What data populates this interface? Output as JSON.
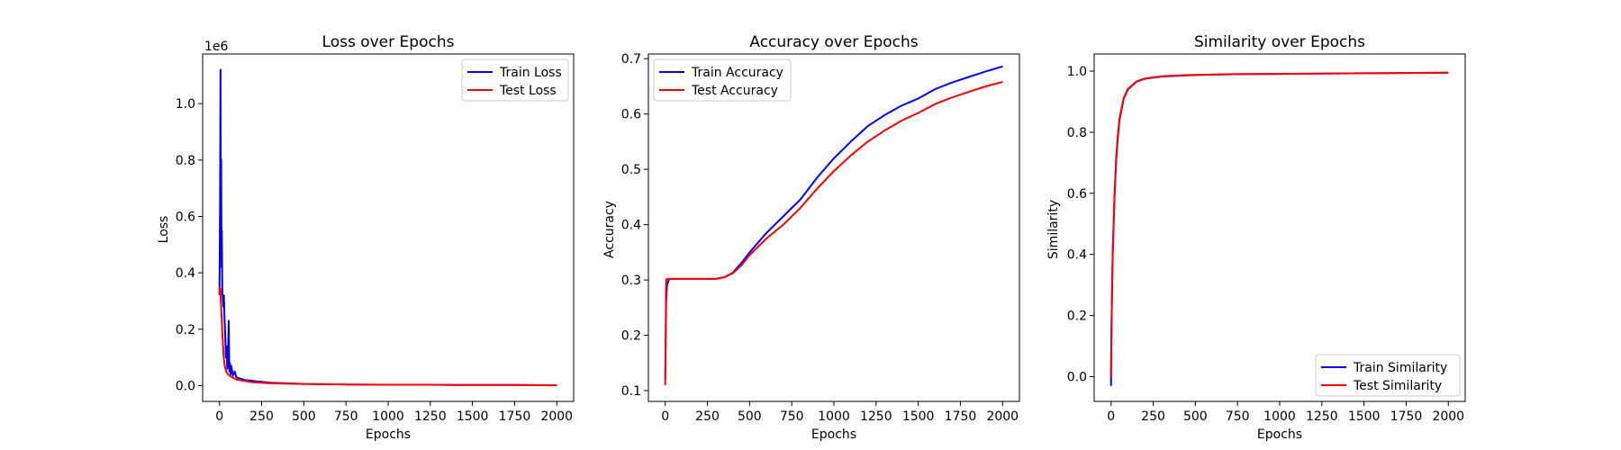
{
  "chart_data": [
    {
      "type": "line",
      "title": "Loss over Epochs",
      "xlabel": "Epochs",
      "ylabel": "Loss",
      "offset_text": "1e6",
      "xlim": [
        -100,
        2100
      ],
      "ylim": [
        -0.056,
        1.176
      ],
      "xticks": [
        0,
        250,
        500,
        750,
        1000,
        1250,
        1500,
        1750,
        2000
      ],
      "xtick_labels": [
        "0",
        "250",
        "500",
        "750",
        "1000",
        "1250",
        "1500",
        "1750",
        "2000"
      ],
      "yticks": [
        0.0,
        0.2,
        0.4,
        0.6,
        0.8,
        1.0
      ],
      "ytick_labels": [
        "0.0",
        "0.2",
        "0.4",
        "0.6",
        "0.8",
        "1.0"
      ],
      "legend_position": "top-right",
      "series": [
        {
          "name": "Train Loss",
          "color": "#0000ff",
          "x": [
            0,
            3,
            6,
            8,
            10,
            12,
            14,
            17,
            20,
            23,
            26,
            30,
            34,
            38,
            42,
            46,
            50,
            55,
            58,
            62,
            66,
            70,
            80,
            90,
            100,
            120,
            150,
            180,
            220,
            260,
            300,
            400,
            500,
            750,
            1000,
            1250,
            1500,
            1750,
            2000
          ],
          "y": [
            0.33,
            0.62,
            1.12,
            0.55,
            0.8,
            0.42,
            0.55,
            0.33,
            0.31,
            0.28,
            0.32,
            0.24,
            0.18,
            0.1,
            0.14,
            0.06,
            0.09,
            0.23,
            0.05,
            0.08,
            0.04,
            0.07,
            0.035,
            0.05,
            0.03,
            0.025,
            0.02,
            0.018,
            0.015,
            0.013,
            0.01,
            0.008,
            0.006,
            0.004,
            0.003,
            0.003,
            0.002,
            0.002,
            0.001
          ]
        },
        {
          "name": "Test Loss",
          "color": "#ff0000",
          "x": [
            0,
            2,
            5,
            8,
            12,
            16,
            20,
            25,
            30,
            35,
            40,
            50,
            60,
            80,
            100,
            150,
            200,
            300,
            400,
            500,
            750,
            1000,
            1250,
            1500,
            1750,
            2000
          ],
          "y": [
            0.32,
            0.35,
            0.34,
            0.3,
            0.25,
            0.2,
            0.15,
            0.1,
            0.075,
            0.06,
            0.05,
            0.04,
            0.035,
            0.028,
            0.022,
            0.016,
            0.012,
            0.008,
            0.007,
            0.006,
            0.004,
            0.003,
            0.003,
            0.002,
            0.002,
            0.001
          ]
        }
      ]
    },
    {
      "type": "line",
      "title": "Accuracy over Epochs",
      "xlabel": "Epochs",
      "ylabel": "Accuracy",
      "xlim": [
        -100,
        2100
      ],
      "ylim": [
        0.0805,
        0.7085
      ],
      "xticks": [
        0,
        250,
        500,
        750,
        1000,
        1250,
        1500,
        1750,
        2000
      ],
      "xtick_labels": [
        "0",
        "250",
        "500",
        "750",
        "1000",
        "1250",
        "1500",
        "1750",
        "2000"
      ],
      "yticks": [
        0.1,
        0.2,
        0.3,
        0.4,
        0.5,
        0.6,
        0.7
      ],
      "ytick_labels": [
        "0.1",
        "0.2",
        "0.3",
        "0.4",
        "0.5",
        "0.6",
        "0.7"
      ],
      "legend_position": "top-left",
      "series": [
        {
          "name": "Train Accuracy",
          "color": "#0000ff",
          "x": [
            0,
            5,
            10,
            20,
            30,
            50,
            100,
            200,
            300,
            350,
            400,
            450,
            500,
            600,
            700,
            800,
            900,
            1000,
            1100,
            1200,
            1300,
            1400,
            1500,
            1600,
            1700,
            1800,
            1900,
            2000
          ],
          "y": [
            0.12,
            0.26,
            0.29,
            0.3,
            0.302,
            0.302,
            0.302,
            0.302,
            0.302,
            0.305,
            0.313,
            0.33,
            0.35,
            0.385,
            0.415,
            0.445,
            0.485,
            0.52,
            0.55,
            0.578,
            0.598,
            0.615,
            0.628,
            0.645,
            0.657,
            0.667,
            0.677,
            0.686
          ]
        },
        {
          "name": "Test Accuracy",
          "color": "#ff0000",
          "x": [
            0,
            5,
            10,
            20,
            30,
            50,
            100,
            200,
            300,
            350,
            400,
            450,
            500,
            600,
            700,
            800,
            900,
            1000,
            1100,
            1200,
            1300,
            1400,
            1500,
            1600,
            1700,
            1800,
            1900,
            2000
          ],
          "y": [
            0.11,
            0.3,
            0.302,
            0.302,
            0.302,
            0.302,
            0.302,
            0.302,
            0.302,
            0.305,
            0.312,
            0.326,
            0.345,
            0.375,
            0.4,
            0.43,
            0.465,
            0.497,
            0.525,
            0.55,
            0.57,
            0.588,
            0.602,
            0.618,
            0.63,
            0.64,
            0.65,
            0.658
          ]
        }
      ]
    },
    {
      "type": "line",
      "title": "Similarity over Epochs",
      "xlabel": "Epochs",
      "ylabel": "Similarity",
      "xlim": [
        -100,
        2100
      ],
      "ylim": [
        -0.081,
        1.056
      ],
      "xticks": [
        0,
        250,
        500,
        750,
        1000,
        1250,
        1500,
        1750,
        2000
      ],
      "xtick_labels": [
        "0",
        "250",
        "500",
        "750",
        "1000",
        "1250",
        "1500",
        "1750",
        "2000"
      ],
      "yticks": [
        0.0,
        0.2,
        0.4,
        0.6,
        0.8,
        1.0
      ],
      "ytick_labels": [
        "0.0",
        "0.2",
        "0.4",
        "0.6",
        "0.8",
        "1.0"
      ],
      "legend_position": "bottom-right",
      "series": [
        {
          "name": "Train Similarity",
          "color": "#0000ff",
          "x": [
            0,
            2,
            5,
            10,
            20,
            30,
            40,
            50,
            75,
            100,
            150,
            200,
            300,
            400,
            500,
            750,
            1000,
            1500,
            2000
          ],
          "y": [
            -0.03,
            0.12,
            0.25,
            0.4,
            0.58,
            0.7,
            0.78,
            0.84,
            0.91,
            0.94,
            0.965,
            0.975,
            0.982,
            0.985,
            0.987,
            0.99,
            0.991,
            0.993,
            0.995
          ]
        },
        {
          "name": "Test Similarity",
          "color": "#ff0000",
          "x": [
            0,
            2,
            5,
            10,
            20,
            30,
            40,
            50,
            75,
            100,
            150,
            200,
            300,
            400,
            500,
            750,
            1000,
            1500,
            2000
          ],
          "y": [
            0.0,
            0.13,
            0.26,
            0.41,
            0.59,
            0.71,
            0.79,
            0.845,
            0.912,
            0.942,
            0.966,
            0.976,
            0.983,
            0.986,
            0.988,
            0.99,
            0.991,
            0.993,
            0.995
          ]
        }
      ]
    }
  ]
}
